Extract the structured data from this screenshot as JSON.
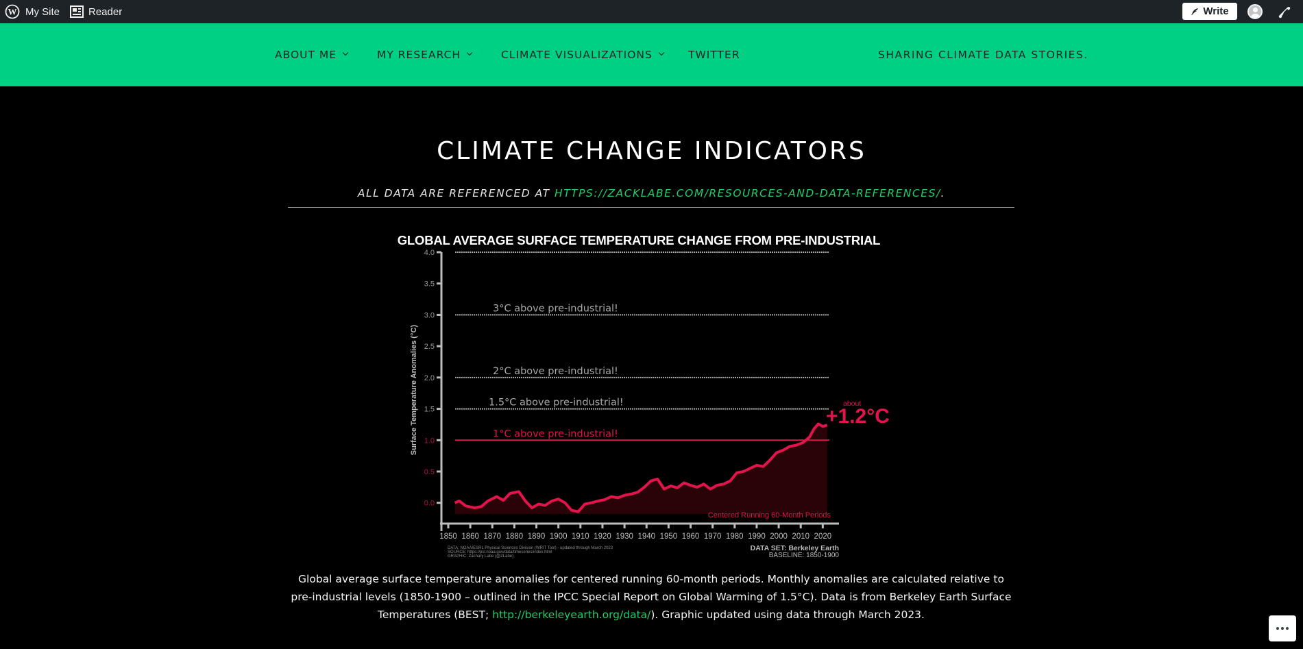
{
  "adminbar": {
    "my_site": "My Site",
    "reader": "Reader",
    "write": "Write"
  },
  "nav": {
    "items": [
      "ABOUT ME",
      "MY RESEARCH",
      "CLIMATE VISUALIZATIONS",
      "TWITTER"
    ],
    "tagline": "SHARING CLIMATE DATA STORIES."
  },
  "page": {
    "title": "CLIMATE CHANGE INDICATORS",
    "subline_prefix": "ALL DATA ARE REFERENCED AT ",
    "subline_link": "HTTPS://ZACKLABE.COM/RESOURCES-AND-DATA-REFERENCES/",
    "subline_suffix": "."
  },
  "chart_data": {
    "type": "line",
    "title": "GLOBAL AVERAGE SURFACE TEMPERATURE CHANGE FROM PRE-INDUSTRIAL",
    "ylabel": "Surface Temperature Anomalies (°C)",
    "xlabel": "",
    "ylim": [
      -0.2,
      4.0
    ],
    "xlim": [
      1850,
      2023
    ],
    "yticks": [
      "0.0",
      "0.5",
      "1.0",
      "1.5",
      "2.0",
      "2.5",
      "3.0",
      "3.5",
      "4.0"
    ],
    "xticks": [
      "1850",
      "1860",
      "1870",
      "1880",
      "1890",
      "1900",
      "1910",
      "1920",
      "1930",
      "1940",
      "1950",
      "1960",
      "1970",
      "1980",
      "1990",
      "2000",
      "2010",
      "2020"
    ],
    "reference_lines": [
      {
        "y": 4.0,
        "label": ""
      },
      {
        "y": 3.0,
        "label": "3°C above pre-industrial!"
      },
      {
        "y": 2.0,
        "label": "2°C above pre-industrial!"
      },
      {
        "y": 1.5,
        "label": "1.5°C above pre-industrial!"
      },
      {
        "y": 1.0,
        "label": "1°C above pre-industrial!"
      }
    ],
    "annotation_small": "about",
    "annotation_big": "+1.2°C",
    "period_note": "Centered Running 60-Month Periods",
    "footer_left": [
      "DATA: NOAA/ESRL Physical Sciences Division (WRIT Tool) - updated through March 2023",
      "SOURCE: https://psl.noaa.gov/data/timeseries/index.html",
      "GRAPHIC: Zachary Labe (@ZLabe)"
    ],
    "footer_right_dataset_label": "DATA SET:",
    "footer_right_dataset": "Berkeley Earth",
    "footer_right_baseline_label": "BASELINE:",
    "footer_right_baseline": "1850-1900",
    "colors": {
      "line": "#e3134c",
      "fill": "#2a0308",
      "ref": "#a8a8a8",
      "axis": "#bdbdbd"
    },
    "x": [
      1853,
      1855,
      1858,
      1862,
      1865,
      1868,
      1872,
      1875,
      1878,
      1882,
      1885,
      1888,
      1891,
      1894,
      1897,
      1900,
      1903,
      1906,
      1909,
      1912,
      1915,
      1918,
      1921,
      1924,
      1927,
      1930,
      1933,
      1936,
      1939,
      1942,
      1945,
      1948,
      1951,
      1954,
      1957,
      1960,
      1963,
      1966,
      1969,
      1972,
      1975,
      1978,
      1981,
      1984,
      1987,
      1990,
      1993,
      1996,
      1999,
      2002,
      2005,
      2008,
      2011,
      2014,
      2016,
      2018,
      2020,
      2022
    ],
    "values": [
      0.0,
      0.03,
      -0.05,
      -0.08,
      -0.06,
      0.03,
      0.1,
      0.04,
      0.15,
      0.18,
      0.03,
      -0.08,
      -0.02,
      -0.04,
      0.03,
      0.06,
      0.0,
      -0.12,
      -0.14,
      -0.02,
      0.0,
      0.03,
      0.05,
      0.1,
      0.08,
      0.12,
      0.14,
      0.17,
      0.25,
      0.35,
      0.38,
      0.22,
      0.27,
      0.24,
      0.32,
      0.28,
      0.25,
      0.3,
      0.22,
      0.28,
      0.3,
      0.35,
      0.48,
      0.5,
      0.55,
      0.6,
      0.58,
      0.68,
      0.8,
      0.84,
      0.9,
      0.92,
      0.96,
      1.05,
      1.18,
      1.26,
      1.22,
      1.24
    ]
  },
  "caption": {
    "part1": "Global average surface temperature anomalies for centered running 60-month periods. Monthly anomalies are calculated relative to pre-industrial levels (1850-1900 – outlined in the IPCC Special Report on Global Warming of 1.5°C). Data is from Berkeley Earth Surface Temperatures (BEST; ",
    "link": "http://berkeleyearth.org/data/",
    "part2": "). Graphic updated using data through March 2023."
  }
}
